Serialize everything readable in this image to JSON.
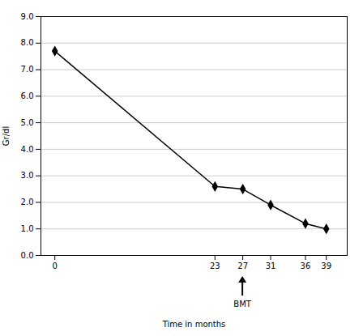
{
  "chart_data": {
    "type": "line",
    "x": [
      0,
      23,
      27,
      31,
      36,
      39
    ],
    "values": [
      7.7,
      2.6,
      2.5,
      1.9,
      1.2,
      1.0
    ],
    "color": "black",
    "marker": "diamond",
    "xlim": [
      -2,
      42
    ],
    "xticks": [
      0,
      23,
      27,
      31,
      36,
      39
    ],
    "ylim": [
      0.0,
      9.0
    ],
    "yticks": [
      {
        "value": 0,
        "label": "0.0"
      },
      {
        "value": 1,
        "label": "1.0"
      },
      {
        "value": 2,
        "label": "2.0"
      },
      {
        "value": 3,
        "label": "3.0"
      },
      {
        "value": 4,
        "label": "4.0"
      },
      {
        "value": 5,
        "label": "5.0"
      },
      {
        "value": 6,
        "label": "6.0"
      },
      {
        "value": 7,
        "label": "7.0"
      },
      {
        "value": 8,
        "label": "8.0"
      },
      {
        "value": 9,
        "label": "9.0"
      }
    ],
    "xlabel": "Time in months",
    "ylabel": "Gr/dl",
    "grid": true,
    "annotations": [
      {
        "text": "BMT",
        "x": 27
      }
    ]
  }
}
